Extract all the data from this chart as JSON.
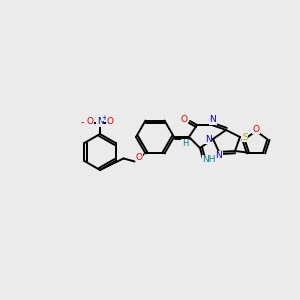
{
  "bg_color": "#ebebeb",
  "bond_color": "#000000",
  "bond_width": 1.4,
  "atom_colors": {
    "C": "#000000",
    "N": "#0000cc",
    "O": "#cc0000",
    "S": "#aaaa00",
    "H": "#008080"
  },
  "figsize": [
    3.0,
    3.0
  ],
  "dpi": 100
}
